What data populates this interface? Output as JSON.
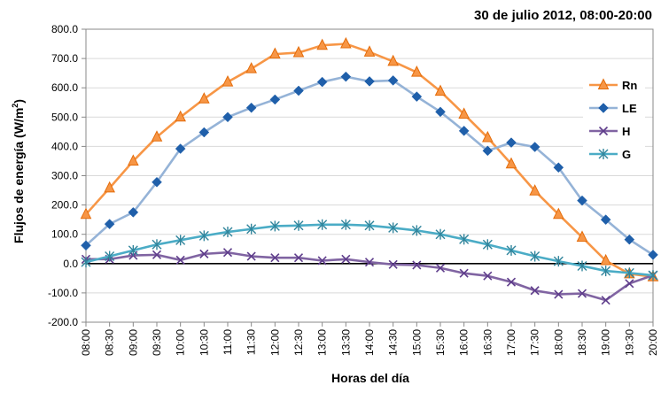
{
  "chart_data": {
    "type": "line",
    "title": "30 de julio 2012, 08:00-20:00",
    "xlabel": "Horas del día",
    "ylabel": "Flujos de energía (W/m²)",
    "ylabel_main": "Flujos de energía (W/m",
    "ylabel_sup": "2",
    "ylabel_end": ")",
    "ylim": [
      -200,
      800
    ],
    "y_ticks": [
      800,
      700,
      600,
      500,
      400,
      300,
      200,
      100,
      0,
      -100,
      -200
    ],
    "y_tick_labels": [
      "800.0",
      "700.0",
      "600.0",
      "500.0",
      "400.0",
      "300.0",
      "200.0",
      "100.0",
      "0.0",
      "-100.0",
      "-200.0"
    ],
    "grid": "horizontal",
    "legend_position": "top-right",
    "x": [
      "08:00",
      "08:30",
      "09:00",
      "09:30",
      "10:00",
      "10:30",
      "11:00",
      "11:30",
      "12:00",
      "12:30",
      "13:00",
      "13:30",
      "14:00",
      "14:30",
      "15:00",
      "15:30",
      "16:00",
      "16:30",
      "17:00",
      "17:30",
      "18:00",
      "18:30",
      "19:00",
      "19:30",
      "20:00"
    ],
    "series": [
      {
        "name": "Rn",
        "color": "#F79646",
        "marker_color": "#E46C0A",
        "marker": "triangle",
        "values": [
          168,
          258,
          350,
          432,
          500,
          562,
          620,
          665,
          715,
          720,
          745,
          750,
          722,
          690,
          653,
          588,
          510,
          430,
          340,
          248,
          168,
          90,
          10,
          -35,
          -45
        ]
      },
      {
        "name": "LE",
        "color": "#95B3D7",
        "marker_color": "#1F5FAA",
        "marker": "diamond",
        "values": [
          62,
          135,
          175,
          278,
          392,
          448,
          500,
          532,
          560,
          590,
          620,
          638,
          622,
          625,
          570,
          518,
          453,
          385,
          413,
          398,
          328,
          215,
          150,
          82,
          30
        ]
      },
      {
        "name": "H",
        "color": "#8064A2",
        "marker_color": "#5E3C8B",
        "marker": "x",
        "values": [
          15,
          15,
          28,
          30,
          12,
          33,
          38,
          25,
          20,
          20,
          10,
          15,
          5,
          -3,
          -5,
          -15,
          -33,
          -42,
          -63,
          -92,
          -105,
          -102,
          -125,
          -68,
          -40
        ]
      },
      {
        "name": "G",
        "color": "#4BACC6",
        "marker_color": "#31859C",
        "marker": "star",
        "values": [
          5,
          25,
          45,
          65,
          80,
          95,
          108,
          118,
          128,
          130,
          133,
          133,
          130,
          122,
          113,
          100,
          83,
          65,
          45,
          25,
          8,
          -8,
          -25,
          -32,
          -40
        ]
      }
    ]
  }
}
